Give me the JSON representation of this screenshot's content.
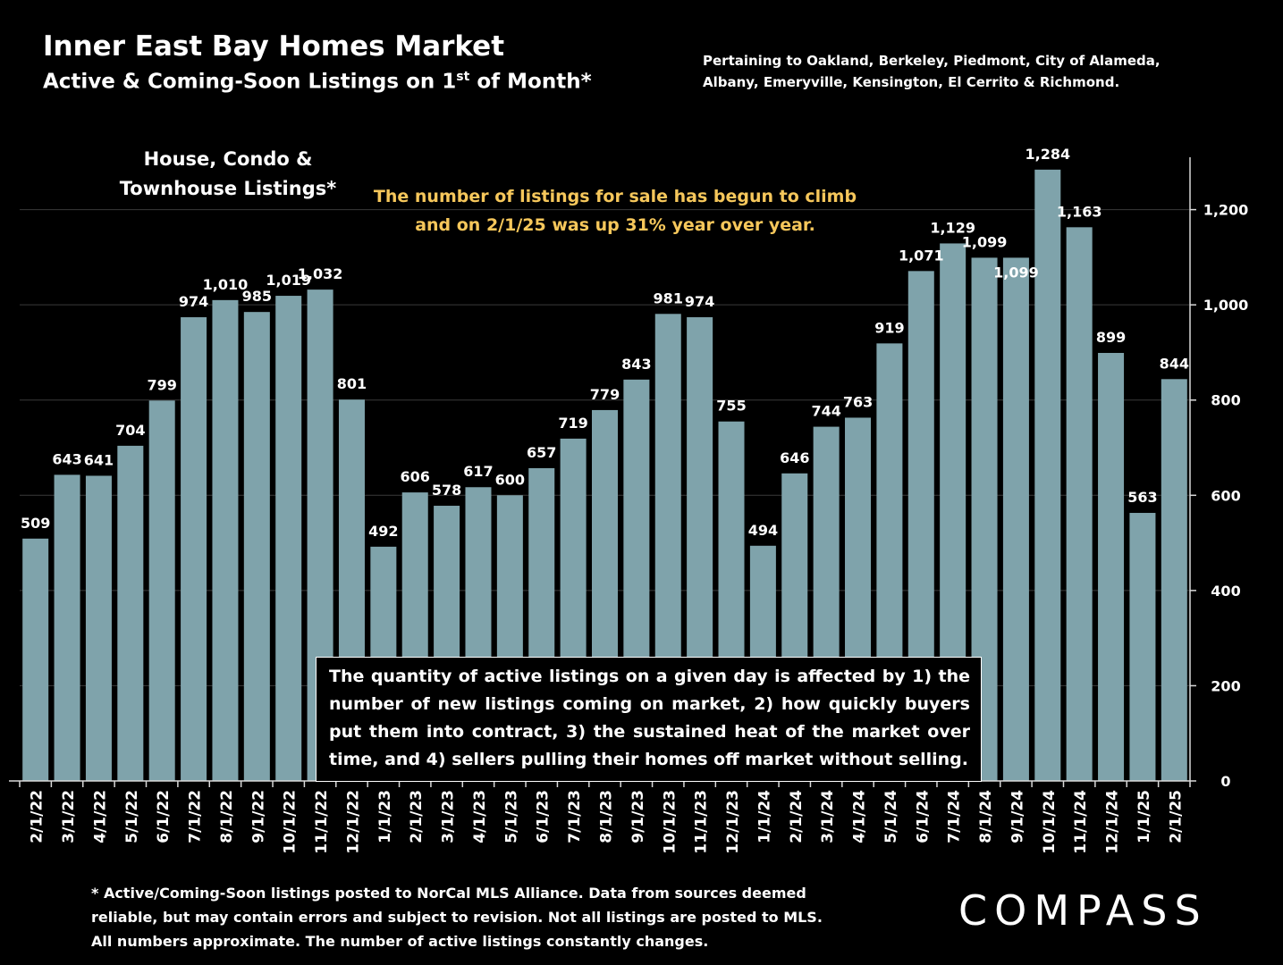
{
  "header": {
    "title": "Inner East Bay Homes Market",
    "subtitle_main": "Active & Coming-Soon Listings on 1",
    "subtitle_sup": "st",
    "subtitle_end": " of Month*",
    "pertaining": "Pertaining to Oakland, Berkeley, Piedmont, City of Alameda, Albany, Emeryville, Kensington, El Cerrito & Richmond."
  },
  "chart_title_line1": "House, Condo &",
  "chart_title_line2": "Townhouse Listings*",
  "callout_line1": "The number of listings for sale has begun to climb",
  "callout_line2": "and on 2/1/25 was up 31% year over year.",
  "note": "The quantity of active listings on a given day is affected by 1) the number of new listings coming on market, 2) how quickly buyers put them into contract, 3) the sustained heat of the market over time, and 4) sellers pulling their homes off market without selling.",
  "footnote": "* Active/Coming-Soon listings posted to NorCal MLS Alliance.  Data from sources deemed reliable, but may contain errors and subject to revision.  Not all listings are posted to MLS. All numbers approximate. The number of active listings constantly changes.",
  "logo": "COMPASS",
  "colors": {
    "bar": "#7fa3ab",
    "background": "#000000",
    "callout": "#f6c75b",
    "text": "#ffffff"
  },
  "chart_data": {
    "type": "bar",
    "title": "House, Condo & Townhouse Listings*",
    "categories": [
      "2/1/22",
      "3/1/22",
      "4/1/22",
      "5/1/22",
      "6/1/22",
      "7/1/22",
      "8/1/22",
      "9/1/22",
      "10/1/22",
      "11/1/22",
      "12/1/22",
      "1/1/23",
      "2/1/23",
      "3/1/23",
      "4/1/23",
      "5/1/23",
      "6/1/23",
      "7/1/23",
      "8/1/23",
      "9/1/23",
      "10/1/23",
      "11/1/23",
      "12/1/23",
      "1/1/24",
      "2/1/24",
      "3/1/24",
      "4/1/24",
      "5/1/24",
      "6/1/24",
      "7/1/24",
      "8/1/24",
      "9/1/24",
      "10/1/24",
      "11/1/24",
      "12/1/24",
      "1/1/25",
      "2/1/25"
    ],
    "values": [
      509,
      643,
      641,
      704,
      799,
      974,
      1010,
      985,
      1019,
      1032,
      801,
      492,
      606,
      578,
      617,
      600,
      657,
      719,
      779,
      843,
      981,
      974,
      755,
      494,
      646,
      744,
      763,
      919,
      1071,
      1129,
      1099,
      1099,
      1284,
      1163,
      899,
      563,
      844
    ],
    "labels": [
      "509",
      "643",
      "641",
      "704",
      "799",
      "974",
      "1,010",
      "985",
      "1,019",
      "1,032",
      "801",
      "492",
      "606",
      "578",
      "617",
      "600",
      "657",
      "719",
      "779",
      "843",
      "981",
      "974",
      "755",
      "494",
      "646",
      "744",
      "763",
      "919",
      "1,071",
      "1,129",
      "1,099",
      "1,099",
      "1,284",
      "1,163",
      "899",
      "563",
      "844"
    ],
    "y_ticks": [
      0,
      200,
      400,
      600,
      800,
      1000,
      1200
    ],
    "y_tick_labels": [
      "0",
      "200",
      "400",
      "600",
      "800",
      "1,000",
      "1,200"
    ],
    "ylim": [
      0,
      1310
    ],
    "y_axis_side": "right",
    "grid": true
  }
}
